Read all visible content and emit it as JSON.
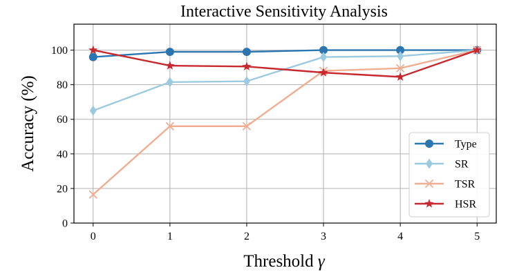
{
  "chart_data": {
    "type": "line",
    "title": "Interactive Sensitivity Analysis",
    "xlabel": "Threshold",
    "xlabel_symbol": "γ",
    "ylabel": "Accuracy (%)",
    "x": [
      0,
      1,
      2,
      3,
      4,
      5
    ],
    "xticks": [
      "0",
      "1",
      "2",
      "3",
      "4",
      "5"
    ],
    "yticks": [
      "0",
      "20",
      "40",
      "60",
      "80",
      "100"
    ],
    "xlim": [
      -0.25,
      5.25
    ],
    "ylim": [
      0,
      115
    ],
    "grid": true,
    "legend_position": "lower-right",
    "series": [
      {
        "name": "Type",
        "values": [
          96,
          99,
          99,
          100,
          100,
          100
        ],
        "color": "#2b76b0",
        "marker": "circle"
      },
      {
        "name": "SR",
        "values": [
          65,
          81.5,
          82,
          96,
          96.5,
          100
        ],
        "color": "#9ccadf",
        "marker": "diamond"
      },
      {
        "name": "TSR",
        "values": [
          16.5,
          56,
          56,
          88,
          89.5,
          100
        ],
        "color": "#f0ad92",
        "marker": "x"
      },
      {
        "name": "HSR",
        "values": [
          100,
          91,
          90.5,
          87,
          84.5,
          100
        ],
        "color": "#c8292f",
        "marker": "star"
      }
    ]
  }
}
